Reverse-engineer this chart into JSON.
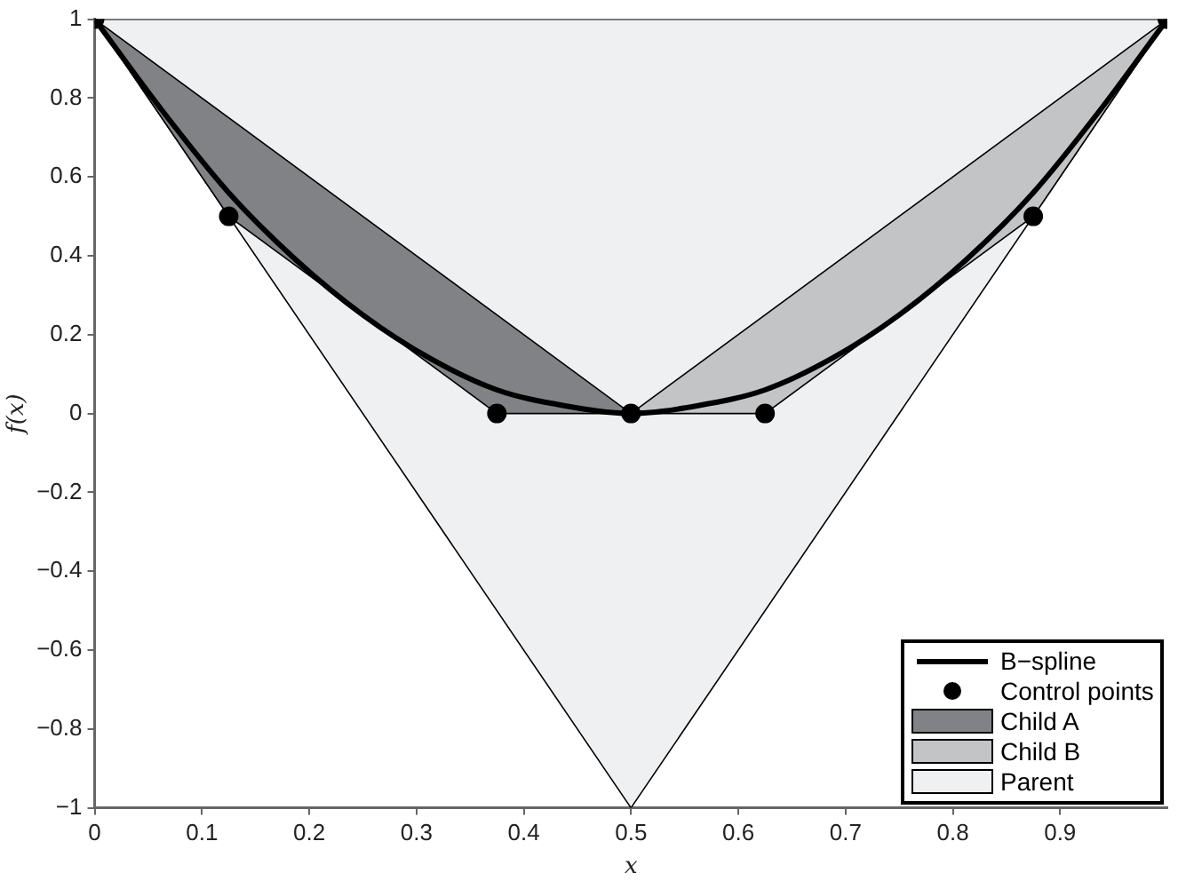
{
  "chart_data": {
    "type": "line",
    "xlabel": "x",
    "ylabel": "f(x)",
    "xlim": [
      0,
      1
    ],
    "ylim": [
      -1,
      1
    ],
    "xticks": [
      0,
      0.1,
      0.2,
      0.3,
      0.4,
      0.5,
      0.6,
      0.7,
      0.8,
      0.9
    ],
    "yticks": [
      {
        "value": -1,
        "label": "−1"
      },
      {
        "value": -0.8,
        "label": "−0.8"
      },
      {
        "value": -0.6,
        "label": "−0.6"
      },
      {
        "value": -0.4,
        "label": "−0.4"
      },
      {
        "value": -0.2,
        "label": "−0.2"
      },
      0,
      0.2,
      0.4,
      0.6,
      0.8,
      1
    ],
    "grid": false,
    "legend": "bottom right",
    "series": [
      {
        "name": "B−spline",
        "color": "#000000",
        "x": [
          0,
          0.0625,
          0.125,
          0.1875,
          0.25,
          0.3125,
          0.375,
          0.4375,
          0.5,
          0.5625,
          0.625,
          0.6875,
          0.75,
          0.8125,
          0.875,
          0.9375,
          1
        ],
        "values": [
          1,
          0.77,
          0.56,
          0.39,
          0.25,
          0.14,
          0.06,
          0.02,
          0,
          0.02,
          0.06,
          0.14,
          0.25,
          0.39,
          0.56,
          0.77,
          1
        ]
      },
      {
        "name": "Control points",
        "type": "scatter",
        "marker": "circle",
        "color": "#000000",
        "x": [
          0,
          0.125,
          0.375,
          0.5,
          0.625,
          0.875,
          1
        ],
        "values": [
          1,
          0.5,
          0,
          0,
          0,
          0.5,
          1
        ]
      },
      {
        "name": "Child A",
        "type": "area",
        "color": "#818286",
        "x": [
          0,
          0.125,
          0.375,
          0.5,
          0
        ],
        "values": [
          1,
          0.5,
          0,
          0,
          1
        ]
      },
      {
        "name": "Child B",
        "type": "area",
        "color": "#c3c4c6",
        "x": [
          0.5,
          0.625,
          0.875,
          1,
          0.5
        ],
        "values": [
          0,
          0,
          0.5,
          1,
          0
        ]
      },
      {
        "name": "Parent",
        "type": "area",
        "color": "#eff0f2",
        "x": [
          0,
          0.5,
          1,
          0
        ],
        "values": [
          1,
          -1,
          1,
          1
        ]
      }
    ]
  }
}
